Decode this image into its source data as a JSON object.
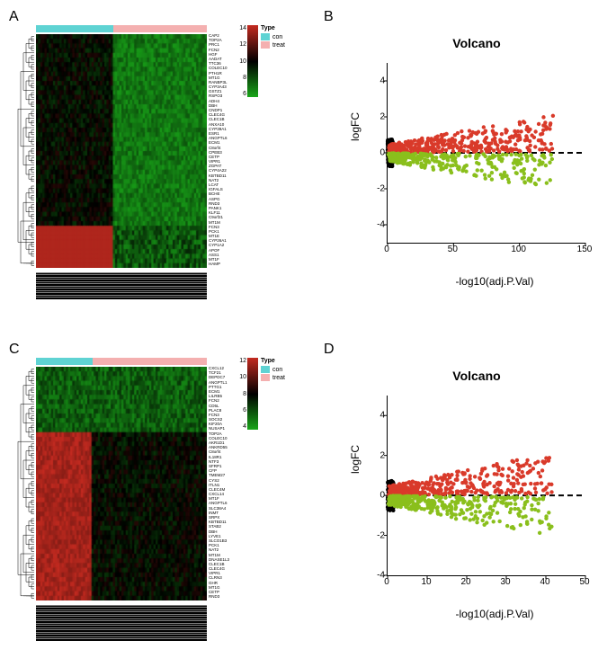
{
  "panels": {
    "A": "A",
    "B": "B",
    "C": "C",
    "D": "D"
  },
  "heatmapA": {
    "typebar_split": 0.45,
    "colors_con": "#5fd3d3",
    "colors_treat": "#f4b0b0",
    "colorbar_ticks": [
      "14",
      "12",
      "10",
      "8",
      "6"
    ],
    "legend_title": "Type",
    "legend_con": "con",
    "legend_treat": "treat",
    "genes": [
      "CAP2",
      "TOP2A",
      "PRC1",
      "FCN2",
      "HGF",
      "AADAT",
      "TTC36",
      "COLEC10",
      "PTH1R",
      "MT1G",
      "RANBP3L",
      "CYP3A43",
      "GSTZ1",
      "RSPO3",
      "ADH4",
      "DBH",
      "CNDP1",
      "CLEC4G",
      "CLEC1B",
      "ANXA10",
      "CYP39A1",
      "ESR1",
      "ANGPTL6",
      "ECM1",
      "C8orf4",
      "CPEB3",
      "CETP",
      "VIPR1",
      "ZGPAT",
      "CYP4A22",
      "KBTBD11",
      "NAT2",
      "LCAT",
      "IGFALS",
      "BCHE",
      "ASPG",
      "RND3",
      "PANK1",
      "KLF11",
      "C9orf21",
      "MT1M",
      "FCN3",
      "PCK1",
      "MT1E",
      "CYP26A1",
      "CYP1A2",
      "APOF",
      "ASS1",
      "MT1F",
      "HAMP"
    ],
    "colorbar_colors": [
      "#c22a20",
      "#000000",
      "#1aa81a"
    ]
  },
  "heatmapC": {
    "typebar_split": 0.33,
    "colors_con": "#5fd3d3",
    "colors_treat": "#f4b0b0",
    "colorbar_ticks": [
      "12",
      "10",
      "8",
      "6",
      "4"
    ],
    "legend_title": "Type",
    "legend_con": "con",
    "legend_treat": "treat",
    "genes": [
      "CXCL12",
      "TCF21",
      "DEPDC7",
      "ANGPTL1",
      "PTTG1",
      "ECM1",
      "LILRB5",
      "FCN2",
      "CD5L",
      "PLAC8",
      "FCN3",
      "SOCS2",
      "KIF20A",
      "NUSAP1",
      "TOP2A",
      "COLEC10",
      "AKR1D1",
      "ANKRD55",
      "C8orf4",
      "IL18R1",
      "NTF3",
      "SFRP1",
      "CFP",
      "TMEM27",
      "CYS2",
      "ITLN1",
      "CLEC4M",
      "CXCL14",
      "MT1F",
      "ANGPTL6",
      "SLC38A4",
      "INMT",
      "SRPX",
      "KBTBD11",
      "STAB2",
      "DBH",
      "LYVE1",
      "SLCO1B3",
      "PCK1",
      "NAT2",
      "MT1M",
      "DNASE1L3",
      "CLEC1B",
      "CLEC4G",
      "VIPR1",
      "CLRN3",
      "GHR",
      "MT1G",
      "CETP",
      "RND3"
    ],
    "colorbar_colors": [
      "#c22a20",
      "#000000",
      "#1aa81a"
    ]
  },
  "volcanoB": {
    "title": "Volcano",
    "ylabel": "logFC",
    "xlabel": "-log10(adj.P.Val)",
    "xlim": [
      0,
      150
    ],
    "ylim": [
      -5,
      5
    ],
    "xticks": [
      0,
      50,
      100,
      150
    ],
    "yticks": [
      -4,
      -2,
      0,
      2,
      4
    ],
    "colors": {
      "up": "#d93a2a",
      "down": "#8abf1c",
      "ns": "#000000"
    },
    "hline": 0,
    "n_up": 450,
    "n_down": 320,
    "n_ns": 150
  },
  "volcanoD": {
    "title": "Volcano",
    "ylabel": "logFC",
    "xlabel": "-log10(adj.P.Val)",
    "xlim": [
      0,
      50
    ],
    "ylim": [
      -4,
      5
    ],
    "xticks": [
      0,
      10,
      20,
      30,
      40,
      50
    ],
    "yticks": [
      -4,
      -2,
      0,
      2,
      4
    ],
    "colors": {
      "up": "#d93a2a",
      "down": "#8abf1c",
      "ns": "#000000"
    },
    "hline": 0,
    "n_up": 420,
    "n_down": 380,
    "n_ns": 120
  }
}
